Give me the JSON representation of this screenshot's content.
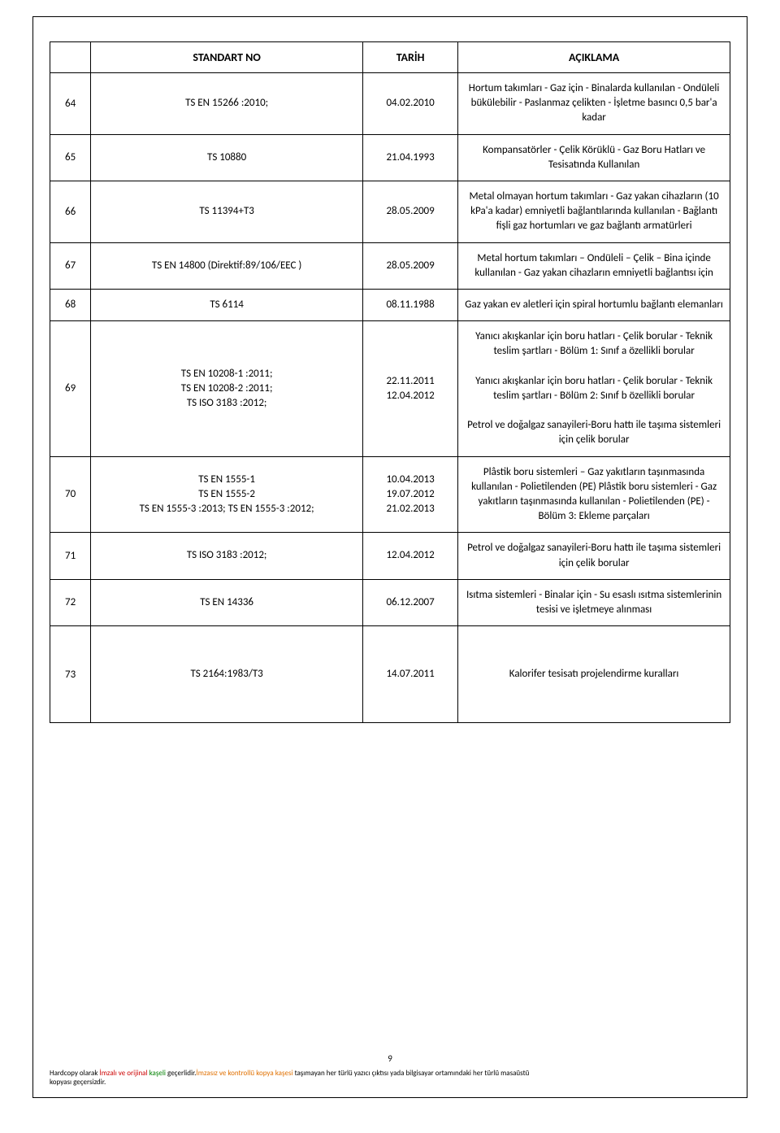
{
  "table": {
    "headers": [
      "",
      "STANDART NO",
      "TARİH",
      "AÇIKLAMA"
    ],
    "rows": [
      {
        "num": "64",
        "std": "TS EN 15266 :2010;",
        "date": "04.02.2010",
        "desc": "Hortum takımları - Gaz için - Binalarda kullanılan - Ondüleli bükülebilir - Paslanmaz çelikten - İşletme basıncı 0,5 bar'a kadar"
      },
      {
        "num": "65",
        "std": "TS 10880",
        "date": "21.04.1993",
        "desc": "Kompansatörler - Çelik Körüklü - Gaz Boru Hatları ve Tesisatında Kullanılan"
      },
      {
        "num": "66",
        "std": "TS 11394+T3",
        "date": "28.05.2009",
        "desc": "Metal olmayan hortum takımları - Gaz yakan cihazların (10 kPa'a kadar) emniyetli bağlantılarında kullanılan - Bağlantı fişli gaz hortumları ve gaz bağlantı armatürleri"
      },
      {
        "num": "67",
        "std": "TS EN 14800 (Direktif:89/106/EEC )",
        "date": "28.05.2009",
        "desc": "Metal hortum takımları – Ondüleli – Çelik – Bina içinde kullanılan - Gaz yakan cihazların emniyetli bağlantısı için"
      },
      {
        "num": "68",
        "std": "TS 6114",
        "date": "08.11.1988",
        "desc": "Gaz yakan ev aletleri için spiral hortumlu bağlantı elemanları"
      },
      {
        "num": "69",
        "std": "TS EN 10208-1 :2011;\nTS EN 10208-2 :2011;\nTS ISO 3183 :2012;",
        "date": "22.11.2011\n12.04.2012",
        "desc": "Yanıcı akışkanlar için boru hatları - Çelik borular - Teknik teslim şartları - Bölüm 1: Sınıf a özellikli borular\n\nYanıcı akışkanlar için boru hatları - Çelik borular - Teknik teslim şartları - Bölüm 2: Sınıf b özellikli borular\n\nPetrol ve doğalgaz sanayileri-Boru hattı ile taşıma sistemleri için çelik borular"
      },
      {
        "num": "70",
        "std": "TS EN 1555-1\nTS EN 1555-2\nTS EN 1555-3 :2013; TS EN 1555-3 :2012;",
        "date": "10.04.2013\n19.07.2012\n21.02.2013",
        "desc": "Plâstik boru sistemleri – Gaz yakıtların taşınmasında kullanılan - Polietilenden (PE) Plâstik boru sistemleri - Gaz yakıtların taşınmasında kullanılan - Polietilenden (PE) - Bölüm 3: Ekleme parçaları"
      },
      {
        "num": "71",
        "std": "TS ISO 3183 :2012;",
        "date": "12.04.2012",
        "desc": "Petrol ve doğalgaz sanayileri-Boru hattı ile taşıma sistemleri için çelik borular"
      },
      {
        "num": "72",
        "std": "TS EN 14336",
        "date": "06.12.2007",
        "desc": "Isıtma sistemleri - Binalar için - Su esaslı ısıtma sistemlerinin tesisi ve işletmeye alınması"
      },
      {
        "num": "73",
        "std": "TS 2164:1983/T3",
        "date": "14.07.2011",
        "desc": "Kalorifer tesisatı projelendirme kuralları",
        "tall": true
      }
    ]
  },
  "footer": {
    "page_number": "9",
    "line1_pre": "Hardcopy olarak ",
    "line1_red": "İmzalı ve orijinal",
    "line1_mid": "   ",
    "line1_green": "kaşeli",
    "line1_post": " geçerlidir.",
    "line1_orange": "İmzasız ve kontrollü kopya kaşesi",
    "line1_tail": " taşımayan her türlü yazıcı çıktısı yada  bilgisayar ortamındaki her türlü masaüstü",
    "line2": "kopyası geçersizdir."
  }
}
